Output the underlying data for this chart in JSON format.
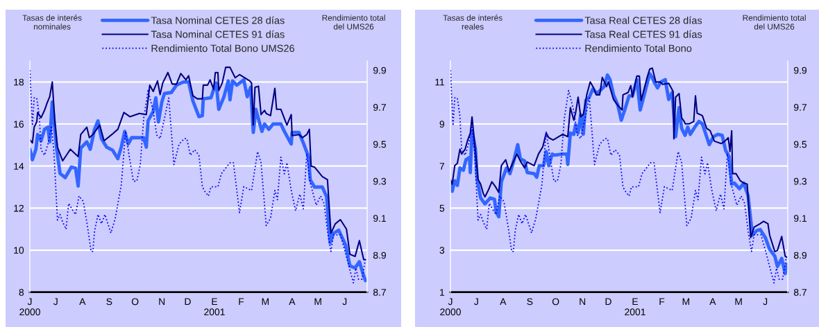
{
  "chart_data": [
    {
      "type": "line",
      "ylabel": "Tasas de interés\nnominales",
      "y2label": "Rendimiento total\ndel UMS26",
      "legend": "top",
      "grid": "y",
      "xlim": [
        "2000-06-01",
        "2001-06-27"
      ],
      "xticks": [
        {
          "value": "2000-06-01",
          "label": "J\n2000"
        },
        {
          "value": "2000-07-01",
          "label": "J"
        },
        {
          "value": "2000-08-01",
          "label": "A"
        },
        {
          "value": "2000-09-01",
          "label": "S"
        },
        {
          "value": "2000-10-01",
          "label": "O"
        },
        {
          "value": "2000-11-01",
          "label": "N"
        },
        {
          "value": "2000-12-01",
          "label": "D"
        },
        {
          "value": "2001-01-01",
          "label": "E\n2001"
        },
        {
          "value": "2001-02-01",
          "label": "F"
        },
        {
          "value": "2001-03-01",
          "label": "M"
        },
        {
          "value": "2001-04-01",
          "label": "A"
        },
        {
          "value": "2001-05-01",
          "label": "M"
        },
        {
          "value": "2001-06-01",
          "label": "J"
        }
      ],
      "ylim": [
        8,
        19
      ],
      "yticks": [
        8,
        10,
        12,
        14,
        16,
        18
      ],
      "y2lim": [
        8.7,
        9.95
      ],
      "y2ticks": [
        8.7,
        8.9,
        9.1,
        9.3,
        9.5,
        9.7,
        9.9
      ],
      "series": [
        {
          "name": "Tasa Nominal CETES 28 días",
          "color": "#3366ff",
          "line_style": "solid",
          "x": [
            "2000-06-01",
            "2000-06-04",
            "2000-06-08",
            "2000-06-10",
            "2000-06-14",
            "2000-06-18",
            "2000-06-22",
            "2000-06-24",
            "2000-06-27",
            "2000-07-02",
            "2000-07-06",
            "2000-07-12",
            "2000-07-19",
            "2000-07-24",
            "2000-07-27",
            "2000-07-30",
            "2000-08-06",
            "2000-08-10",
            "2000-08-15",
            "2000-08-19",
            "2000-08-23",
            "2000-08-29",
            "2000-09-05",
            "2000-09-11",
            "2000-09-15",
            "2000-09-19",
            "2000-09-23",
            "2000-09-27",
            "2000-10-06",
            "2000-10-11",
            "2000-10-14",
            "2000-10-16",
            "2000-10-22",
            "2000-10-25",
            "2000-10-28",
            "2000-11-01",
            "2000-11-04",
            "2000-11-12",
            "2000-11-18",
            "2000-11-26",
            "2000-12-02",
            "2000-12-07",
            "2000-12-14",
            "2000-12-18",
            "2000-12-19",
            "2000-12-28",
            "2001-01-02",
            "2001-01-03",
            "2001-01-06",
            "2001-01-12",
            "2001-01-17",
            "2001-01-19",
            "2001-01-22",
            "2001-01-27",
            "2001-02-04",
            "2001-02-08",
            "2001-02-12",
            "2001-02-15",
            "2001-02-18",
            "2001-02-25",
            "2001-02-28",
            "2001-03-05",
            "2001-03-10",
            "2001-03-19",
            "2001-03-23",
            "2001-03-31",
            "2001-04-01",
            "2001-04-09",
            "2001-04-14",
            "2001-04-20",
            "2001-04-22",
            "2001-04-27",
            "2001-05-06",
            "2001-05-11",
            "2001-05-15",
            "2001-05-19",
            "2001-05-25",
            "2001-06-02",
            "2001-06-07",
            "2001-06-13",
            "2001-06-18",
            "2001-06-22",
            "2001-06-25"
          ],
          "values": [
            14.8,
            14.3,
            14.8,
            15.5,
            15.2,
            15.75,
            15.85,
            15.15,
            17.05,
            14.85,
            13.65,
            13.45,
            13.95,
            13.9,
            13.05,
            14.85,
            15.15,
            14.8,
            15.75,
            16.15,
            15.3,
            14.9,
            14.75,
            14.35,
            14.9,
            15.65,
            15.05,
            15.35,
            15.35,
            15.35,
            14.9,
            16.15,
            16.6,
            17.25,
            16.1,
            17.05,
            17.45,
            17.5,
            17.85,
            18.0,
            18.0,
            17.1,
            16.35,
            16.4,
            17.2,
            17.25,
            17.9,
            17.95,
            16.7,
            17.3,
            18.05,
            17.15,
            18.05,
            17.85,
            18.1,
            17.3,
            17.75,
            15.6,
            16.7,
            15.65,
            16.0,
            15.75,
            16.0,
            16.0,
            15.65,
            15.05,
            15.6,
            15.6,
            15.1,
            14.45,
            13.35,
            13.0,
            13.0,
            12.55,
            10.35,
            10.8,
            10.95,
            10.25,
            9.25,
            9.15,
            9.45,
            8.9,
            8.55
          ]
        },
        {
          "name": "Tasa Nominal CETES 91 días",
          "color": "#000080",
          "line_style": "solid",
          "x": [
            "2000-06-01",
            "2000-06-04",
            "2000-06-06",
            "2000-06-09",
            "2000-06-10",
            "2000-06-14",
            "2000-06-18",
            "2000-06-21",
            "2000-06-24",
            "2000-06-27",
            "2000-06-30",
            "2000-07-03",
            "2000-07-09",
            "2000-07-14",
            "2000-07-18",
            "2000-07-27",
            "2000-07-30",
            "2000-08-06",
            "2000-08-09",
            "2000-08-13",
            "2000-08-21",
            "2000-08-26",
            "2000-09-04",
            "2000-09-11",
            "2000-09-18",
            "2000-09-25",
            "2000-10-06",
            "2000-10-14",
            "2000-10-18",
            "2000-10-22",
            "2000-10-27",
            "2000-10-30",
            "2000-11-02",
            "2000-11-08",
            "2000-11-13",
            "2000-11-18",
            "2000-11-23",
            "2000-11-29",
            "2000-12-02",
            "2000-12-07",
            "2000-12-12",
            "2000-12-18",
            "2000-12-19",
            "2000-12-24",
            "2000-12-27",
            "2000-12-31",
            "2001-01-02",
            "2001-01-05",
            "2001-01-06",
            "2001-01-10",
            "2001-01-14",
            "2001-01-19",
            "2001-01-25",
            "2001-01-30",
            "2001-02-11",
            "2001-02-13",
            "2001-02-15",
            "2001-02-17",
            "2001-02-21",
            "2001-02-24",
            "2001-02-28",
            "2001-03-02",
            "2001-03-07",
            "2001-03-12",
            "2001-03-14",
            "2001-03-19",
            "2001-03-26",
            "2001-03-31",
            "2001-04-01",
            "2001-04-09",
            "2001-04-13",
            "2001-04-18",
            "2001-04-21",
            "2001-04-23",
            "2001-04-27",
            "2001-05-06",
            "2001-05-12",
            "2001-05-16",
            "2001-05-21",
            "2001-05-27",
            "2001-06-03",
            "2001-06-07",
            "2001-06-13",
            "2001-06-18",
            "2001-06-21",
            "2001-06-23",
            "2001-06-25"
          ],
          "values": [
            15.25,
            15.1,
            15.85,
            16.1,
            16.55,
            16.3,
            16.65,
            17.0,
            17.3,
            18.0,
            16.1,
            14.9,
            14.25,
            14.55,
            14.8,
            14.45,
            15.5,
            15.85,
            15.35,
            15.5,
            15.95,
            15.2,
            15.5,
            15.75,
            16.55,
            16.35,
            16.5,
            16.45,
            17.85,
            17.55,
            18.05,
            17.4,
            17.95,
            18.45,
            17.9,
            17.9,
            18.4,
            18.1,
            18.3,
            17.35,
            17.2,
            17.2,
            17.85,
            17.85,
            18.1,
            17.65,
            18.45,
            18.45,
            17.6,
            17.95,
            18.7,
            18.7,
            18.2,
            18.35,
            18.05,
            17.95,
            15.95,
            17.75,
            17.8,
            16.45,
            16.65,
            16.5,
            16.4,
            17.7,
            16.7,
            16.7,
            15.95,
            16.45,
            15.45,
            15.5,
            15.35,
            15.5,
            15.75,
            14.0,
            13.95,
            13.5,
            13.35,
            10.8,
            11.25,
            11.45,
            11.0,
            9.8,
            9.7,
            10.45,
            9.9,
            9.55,
            9.55
          ]
        },
        {
          "name": "Rendimiento Total Bono UMS26",
          "color": "#0000ff",
          "line_style": "dotted",
          "axis": "y2",
          "x": [
            "2000-06-01",
            "2000-06-04",
            "2000-06-06",
            "2000-06-09",
            "2000-06-12",
            "2000-06-14",
            "2000-06-18",
            "2000-06-22",
            "2000-06-26",
            "2000-06-29",
            "2000-07-03",
            "2000-07-06",
            "2000-07-09",
            "2000-07-13",
            "2000-07-16",
            "2000-07-21",
            "2000-07-24",
            "2000-07-28",
            "2000-08-02",
            "2000-08-07",
            "2000-08-11",
            "2000-08-13",
            "2000-08-15",
            "2000-08-19",
            "2000-08-23",
            "2000-08-27",
            "2000-09-03",
            "2000-09-08",
            "2000-09-15",
            "2000-09-20",
            "2000-09-24",
            "2000-09-29",
            "2000-10-03",
            "2000-10-07",
            "2000-10-11",
            "2000-10-16",
            "2000-10-22",
            "2000-10-26",
            "2000-10-30",
            "2000-11-05",
            "2000-11-09",
            "2000-11-15",
            "2000-11-21",
            "2000-11-27",
            "2000-11-30",
            "2000-12-04",
            "2000-12-09",
            "2000-12-14",
            "2000-12-18",
            "2000-12-20",
            "2000-12-25",
            "2000-12-28",
            "2001-01-05",
            "2001-01-09",
            "2001-01-14",
            "2001-01-19",
            "2001-01-23",
            "2001-01-30",
            "2001-02-04",
            "2001-02-13",
            "2001-02-20",
            "2001-02-24",
            "2001-03-02",
            "2001-03-07",
            "2001-03-12",
            "2001-03-15",
            "2001-03-19",
            "2001-03-23",
            "2001-03-26",
            "2001-03-31",
            "2001-04-05",
            "2001-04-10",
            "2001-04-14",
            "2001-04-18",
            "2001-04-22",
            "2001-04-29",
            "2001-05-04",
            "2001-05-08",
            "2001-05-12",
            "2001-05-16",
            "2001-05-19",
            "2001-05-27",
            "2001-06-02",
            "2001-06-07",
            "2001-06-11",
            "2001-06-14",
            "2001-06-17",
            "2001-06-21",
            "2001-06-25"
          ],
          "values": [
            9.9,
            9.6,
            9.75,
            9.75,
            9.65,
            9.47,
            9.44,
            9.5,
            9.6,
            9.45,
            9.09,
            9.12,
            9.08,
            9.04,
            9.18,
            9.14,
            9.12,
            9.22,
            9.19,
            9.05,
            8.92,
            8.92,
            9.03,
            9.12,
            9.07,
            9.12,
            9.02,
            9.1,
            9.28,
            9.57,
            9.44,
            9.3,
            9.3,
            9.39,
            9.64,
            9.79,
            9.68,
            9.55,
            9.53,
            9.66,
            9.75,
            9.39,
            9.5,
            9.53,
            9.53,
            9.44,
            9.47,
            9.44,
            9.27,
            9.25,
            9.22,
            9.27,
            9.27,
            9.34,
            9.37,
            9.4,
            9.4,
            9.13,
            9.27,
            9.25,
            9.46,
            9.4,
            9.06,
            9.1,
            9.25,
            9.2,
            9.43,
            9.34,
            9.4,
            9.25,
            9.14,
            9.23,
            9.15,
            9.45,
            9.29,
            9.17,
            9.22,
            9.18,
            9.03,
            8.92,
            9.01,
            9.01,
            8.91,
            8.82,
            8.75,
            8.83,
            8.77,
            8.77,
            8.88
          ]
        }
      ]
    },
    {
      "type": "line",
      "ylabel": "Tasas de interés\nreales",
      "y2label": "Rendimiento total\ndel UMS26",
      "legend": "top",
      "grid": "y",
      "xlim": [
        "2000-06-01",
        "2001-06-27"
      ],
      "xticks": [
        {
          "value": "2000-06-01",
          "label": "J\n2000"
        },
        {
          "value": "2000-07-01",
          "label": "J"
        },
        {
          "value": "2000-08-01",
          "label": "A"
        },
        {
          "value": "2000-09-01",
          "label": "S"
        },
        {
          "value": "2000-10-01",
          "label": "O"
        },
        {
          "value": "2000-11-01",
          "label": "N"
        },
        {
          "value": "2000-12-01",
          "label": "D"
        },
        {
          "value": "2001-01-01",
          "label": "E\n2001"
        },
        {
          "value": "2001-02-01",
          "label": "F"
        },
        {
          "value": "2001-03-01",
          "label": "M"
        },
        {
          "value": "2001-04-01",
          "label": "A"
        },
        {
          "value": "2001-05-01",
          "label": "M"
        },
        {
          "value": "2001-06-01",
          "label": "J"
        }
      ],
      "ylim": [
        1,
        12
      ],
      "yticks": [
        1,
        3,
        5,
        7,
        9,
        11
      ],
      "y2lim": [
        8.7,
        9.95
      ],
      "y2ticks": [
        8.7,
        8.9,
        9.1,
        9.3,
        9.5,
        9.7,
        9.9
      ],
      "series": [
        {
          "name": "Tasa Real CETES 28 días",
          "color": "#3366ff",
          "line_style": "solid",
          "x": [
            "2000-06-01",
            "2000-06-03",
            "2000-06-06",
            "2000-06-09",
            "2000-06-12",
            "2000-06-16",
            "2000-06-19",
            "2000-06-23",
            "2000-06-24",
            "2000-06-26",
            "2000-06-30",
            "2000-07-02",
            "2000-07-06",
            "2000-07-11",
            "2000-07-17",
            "2000-07-22",
            "2000-07-24",
            "2000-07-27",
            "2000-07-30",
            "2000-08-05",
            "2000-08-09",
            "2000-08-14",
            "2000-08-18",
            "2000-08-21",
            "2000-08-26",
            "2000-08-29",
            "2000-09-06",
            "2000-09-09",
            "2000-09-12",
            "2000-09-17",
            "2000-09-20",
            "2000-09-23",
            "2000-09-27",
            "2000-09-30",
            "2000-10-09",
            "2000-10-14",
            "2000-10-15",
            "2000-10-18",
            "2000-10-22",
            "2000-10-24",
            "2000-10-27",
            "2000-10-30",
            "2000-11-02",
            "2000-11-05",
            "2000-11-09",
            "2000-11-13",
            "2000-11-18",
            "2000-11-26",
            "2000-11-30",
            "2000-12-03",
            "2000-12-07",
            "2000-12-12",
            "2000-12-16",
            "2000-12-20",
            "2000-12-25",
            "2000-12-29",
            "2001-01-03",
            "2001-01-07",
            "2001-01-12",
            "2001-01-18",
            "2001-01-21",
            "2001-01-23",
            "2001-01-27",
            "2001-01-31",
            "2001-02-05",
            "2001-02-09",
            "2001-02-13",
            "2001-02-17",
            "2001-02-21",
            "2001-02-24",
            "2001-02-28",
            "2001-03-03",
            "2001-03-06",
            "2001-03-12",
            "2001-03-16",
            "2001-03-20",
            "2001-03-28",
            "2001-04-02",
            "2001-04-07",
            "2001-04-12",
            "2001-04-16",
            "2001-04-20",
            "2001-04-23",
            "2001-04-26",
            "2001-05-02",
            "2001-05-07",
            "2001-05-12",
            "2001-05-17",
            "2001-05-22",
            "2001-05-26",
            "2001-06-01",
            "2001-06-06",
            "2001-06-12",
            "2001-06-15",
            "2001-06-20",
            "2001-06-24",
            "2001-06-26"
          ],
          "values": [
            6.19,
            5.8,
            6.3,
            6.08,
            6.91,
            6.8,
            7.3,
            7.41,
            6.69,
            8.68,
            7.8,
            6.36,
            5.48,
            5.2,
            5.48,
            5.42,
            4.81,
            4.59,
            6.25,
            6.91,
            6.64,
            7.35,
            8.02,
            7.35,
            7.24,
            6.69,
            6.64,
            6.47,
            7.02,
            7.02,
            7.69,
            7.02,
            7.57,
            7.52,
            7.57,
            7.57,
            7.08,
            8.57,
            8.51,
            8.96,
            8.57,
            9.45,
            8.51,
            10.12,
            10.28,
            10.67,
            10.45,
            10.78,
            11.33,
            11.11,
            10.39,
            9.9,
            9.18,
            9.67,
            10.34,
            10.34,
            11.11,
            9.67,
            10.45,
            11.39,
            11.22,
            11.0,
            10.72,
            11.0,
            11.11,
            10.17,
            10.5,
            8.4,
            9.78,
            8.79,
            8.46,
            8.85,
            8.51,
            8.9,
            9.12,
            9.01,
            8.02,
            8.4,
            8.51,
            8.46,
            7.74,
            7.46,
            6.14,
            6.19,
            5.92,
            6.19,
            5.59,
            3.71,
            3.93,
            3.98,
            3.6,
            3.04,
            2.71,
            2.22,
            2.6,
            1.88,
            2.33
          ]
        },
        {
          "name": "Tasa Real CETES 91 días",
          "color": "#000080",
          "line_style": "solid",
          "x": [
            "2000-06-01",
            "2000-06-03",
            "2000-06-06",
            "2000-06-09",
            "2000-06-12",
            "2000-06-14",
            "2000-06-18",
            "2000-06-21",
            "2000-06-24",
            "2000-06-26",
            "2000-06-30",
            "2000-07-03",
            "2000-07-06",
            "2000-07-09",
            "2000-07-11",
            "2000-07-15",
            "2000-07-19",
            "2000-07-23",
            "2000-07-27",
            "2000-07-30",
            "2000-08-04",
            "2000-08-08",
            "2000-08-12",
            "2000-08-17",
            "2000-08-21",
            "2000-08-26",
            "2000-08-29",
            "2000-09-06",
            "2000-09-11",
            "2000-09-16",
            "2000-09-20",
            "2000-09-23",
            "2000-09-28",
            "2000-10-09",
            "2000-10-15",
            "2000-10-18",
            "2000-10-22",
            "2000-10-24",
            "2000-10-27",
            "2000-10-30",
            "2000-11-02",
            "2000-11-06",
            "2000-11-10",
            "2000-11-14",
            "2000-11-17",
            "2000-11-21",
            "2000-11-24",
            "2000-11-29",
            "2000-12-01",
            "2000-12-07",
            "2000-12-13",
            "2000-12-17",
            "2000-12-18",
            "2000-12-24",
            "2000-12-27",
            "2000-12-29",
            "2001-01-03",
            "2001-01-06",
            "2001-01-08",
            "2001-01-15",
            "2001-01-18",
            "2001-01-21",
            "2001-01-25",
            "2001-01-30",
            "2001-02-02",
            "2001-02-09",
            "2001-02-14",
            "2001-02-15",
            "2001-02-17",
            "2001-02-21",
            "2001-02-24",
            "2001-02-27",
            "2001-02-28",
            "2001-03-05",
            "2001-03-10",
            "2001-03-12",
            "2001-03-14",
            "2001-03-20",
            "2001-03-25",
            "2001-03-29",
            "2001-04-03",
            "2001-04-11",
            "2001-04-15",
            "2001-04-19",
            "2001-04-21",
            "2001-04-23",
            "2001-04-24",
            "2001-04-28",
            "2001-05-03",
            "2001-05-07",
            "2001-05-11",
            "2001-05-15",
            "2001-05-19",
            "2001-05-26",
            "2001-05-30",
            "2001-06-04",
            "2001-06-06",
            "2001-06-12",
            "2001-06-15",
            "2001-06-20",
            "2001-06-24",
            "2001-06-26"
          ],
          "values": [
            6.36,
            6.14,
            7.02,
            7.13,
            7.8,
            7.57,
            7.8,
            8.24,
            8.57,
            9.34,
            7.69,
            6.36,
            6.14,
            5.7,
            5.53,
            5.86,
            6.25,
            6.03,
            5.75,
            7.02,
            7.3,
            6.75,
            7.13,
            7.57,
            7.24,
            6.91,
            7.19,
            7.02,
            7.57,
            7.91,
            8.57,
            8.35,
            8.24,
            8.51,
            8.4,
            9.78,
            9.18,
            9.51,
            10.28,
            9.34,
            9.45,
            10.39,
            11.0,
            10.72,
            10.39,
            10.39,
            11.22,
            10.78,
            11.0,
            10.17,
            9.84,
            9.67,
            10.39,
            10.5,
            10.83,
            10.28,
            11.28,
            11.28,
            10.12,
            11.22,
            11.61,
            11.66,
            11.0,
            11.0,
            10.89,
            10.94,
            10.56,
            8.29,
            10.28,
            10.45,
            9.29,
            9.12,
            9.01,
            9.01,
            9.12,
            10.34,
            9.51,
            9.4,
            8.79,
            8.68,
            8.18,
            8.07,
            8.18,
            8.35,
            7.69,
            8.68,
            6.64,
            6.64,
            6.3,
            6.19,
            6.14,
            3.6,
            4.09,
            4.26,
            4.37,
            4.26,
            3.71,
            2.93,
            2.99,
            3.65,
            2.71,
            2.66
          ]
        },
        {
          "name": "Rendimiento Total Bono",
          "color": "#0000ff",
          "line_style": "dotted",
          "axis": "y2",
          "x": [
            "2000-06-01",
            "2000-06-04",
            "2000-06-06",
            "2000-06-09",
            "2000-06-12",
            "2000-06-14",
            "2000-06-18",
            "2000-06-22",
            "2000-06-26",
            "2000-06-29",
            "2000-07-03",
            "2000-07-06",
            "2000-07-09",
            "2000-07-13",
            "2000-07-16",
            "2000-07-21",
            "2000-07-24",
            "2000-07-28",
            "2000-08-02",
            "2000-08-07",
            "2000-08-11",
            "2000-08-13",
            "2000-08-15",
            "2000-08-19",
            "2000-08-23",
            "2000-08-27",
            "2000-09-03",
            "2000-09-08",
            "2000-09-15",
            "2000-09-20",
            "2000-09-24",
            "2000-09-29",
            "2000-10-03",
            "2000-10-07",
            "2000-10-11",
            "2000-10-16",
            "2000-10-22",
            "2000-10-26",
            "2000-10-30",
            "2000-11-05",
            "2000-11-09",
            "2000-11-15",
            "2000-11-21",
            "2000-11-27",
            "2000-11-30",
            "2000-12-04",
            "2000-12-09",
            "2000-12-14",
            "2000-12-18",
            "2000-12-20",
            "2000-12-25",
            "2000-12-28",
            "2001-01-05",
            "2001-01-09",
            "2001-01-14",
            "2001-01-19",
            "2001-01-23",
            "2001-01-30",
            "2001-02-04",
            "2001-02-13",
            "2001-02-20",
            "2001-02-24",
            "2001-03-02",
            "2001-03-07",
            "2001-03-12",
            "2001-03-15",
            "2001-03-19",
            "2001-03-23",
            "2001-03-26",
            "2001-03-31",
            "2001-04-05",
            "2001-04-10",
            "2001-04-14",
            "2001-04-18",
            "2001-04-22",
            "2001-04-29",
            "2001-05-04",
            "2001-05-08",
            "2001-05-12",
            "2001-05-16",
            "2001-05-19",
            "2001-05-27",
            "2001-06-02",
            "2001-06-07",
            "2001-06-11",
            "2001-06-14",
            "2001-06-17",
            "2001-06-21",
            "2001-06-25"
          ],
          "values": [
            9.9,
            9.6,
            9.75,
            9.75,
            9.65,
            9.47,
            9.44,
            9.5,
            9.6,
            9.45,
            9.09,
            9.12,
            9.08,
            9.04,
            9.18,
            9.14,
            9.12,
            9.22,
            9.19,
            9.05,
            8.92,
            8.92,
            9.03,
            9.12,
            9.07,
            9.12,
            9.02,
            9.1,
            9.28,
            9.57,
            9.44,
            9.3,
            9.3,
            9.39,
            9.64,
            9.79,
            9.68,
            9.55,
            9.53,
            9.66,
            9.75,
            9.39,
            9.5,
            9.53,
            9.53,
            9.44,
            9.47,
            9.44,
            9.27,
            9.25,
            9.22,
            9.27,
            9.27,
            9.34,
            9.37,
            9.4,
            9.4,
            9.13,
            9.27,
            9.25,
            9.46,
            9.4,
            9.06,
            9.1,
            9.25,
            9.2,
            9.43,
            9.34,
            9.4,
            9.25,
            9.14,
            9.23,
            9.15,
            9.45,
            9.29,
            9.17,
            9.22,
            9.18,
            9.03,
            8.92,
            9.01,
            9.01,
            8.91,
            8.82,
            8.75,
            8.83,
            8.77,
            8.77,
            8.88
          ]
        }
      ]
    }
  ]
}
